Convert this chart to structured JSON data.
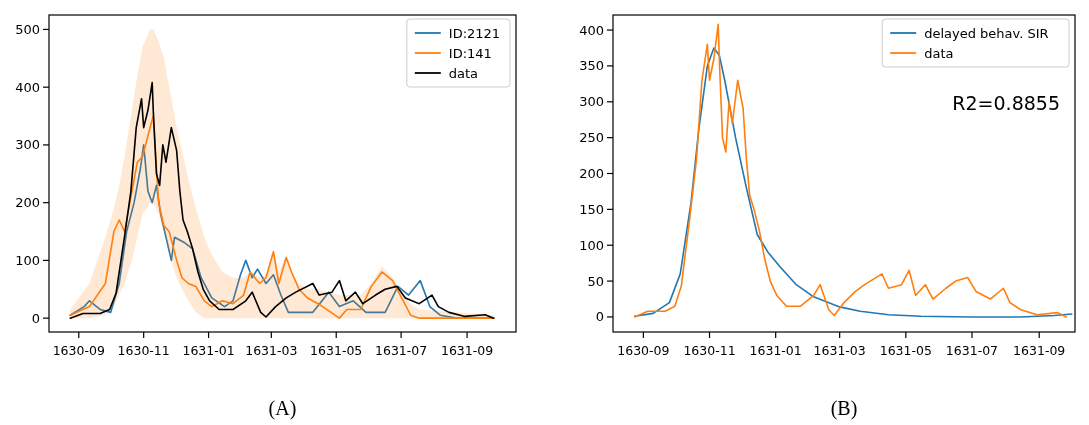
{
  "chart_data": [
    {
      "type": "line",
      "xlabel": "(A)",
      "legend": "top right",
      "xlim": [
        "1630-08-04",
        "1631-10-17"
      ],
      "ylim": [
        -24,
        525
      ],
      "xticks": [
        "1630-09",
        "1630-11",
        "1631-01",
        "1631-03",
        "1631-05",
        "1631-07",
        "1631-09"
      ],
      "yticks": [
        0,
        100,
        200,
        300,
        400,
        500
      ],
      "series": [
        {
          "name": "ID:2121",
          "color": "#1f77b4",
          "x": [
            "1630-08-24",
            "1630-09-06",
            "1630-09-11",
            "1630-09-21",
            "1630-10-01",
            "1630-10-09",
            "1630-10-16",
            "1630-10-23",
            "1630-10-29",
            "1630-11-01",
            "1630-11-05",
            "1630-11-09",
            "1630-11-13",
            "1630-11-17",
            "1630-11-22",
            "1630-11-27",
            "1630-11-30",
            "1630-12-10",
            "1630-12-17",
            "1630-12-25",
            "1631-01-04",
            "1631-01-16",
            "1631-01-24",
            "1631-01-31",
            "1631-02-05",
            "1631-02-11",
            "1631-02-16",
            "1631-02-24",
            "1631-03-03",
            "1631-03-10",
            "1631-03-17",
            "1631-04-09",
            "1631-04-24",
            "1631-05-04",
            "1631-05-17",
            "1631-05-29",
            "1631-06-16",
            "1631-06-28",
            "1631-07-08",
            "1631-07-19",
            "1631-07-28",
            "1631-08-07",
            "1631-08-22",
            "1631-09-26"
          ],
          "values": [
            5,
            20,
            30,
            15,
            10,
            60,
            150,
            200,
            260,
            300,
            220,
            200,
            230,
            180,
            140,
            100,
            140,
            130,
            120,
            70,
            35,
            20,
            30,
            75,
            100,
            70,
            85,
            60,
            75,
            40,
            10,
            10,
            45,
            20,
            30,
            10,
            10,
            55,
            40,
            65,
            20,
            5,
            0,
            0
          ]
        },
        {
          "name": "ID:141",
          "color": "#ff7f0e",
          "x": [
            "1630-08-24",
            "1630-09-11",
            "1630-09-26",
            "1630-10-04",
            "1630-10-09",
            "1630-10-14",
            "1630-10-21",
            "1630-10-26",
            "1630-10-31",
            "1630-11-07",
            "1630-11-10",
            "1630-11-15",
            "1630-11-20",
            "1630-11-25",
            "1630-12-02",
            "1630-12-07",
            "1630-12-13",
            "1630-12-20",
            "1630-12-28",
            "1631-01-04",
            "1631-01-14",
            "1631-01-24",
            "1631-02-03",
            "1631-02-09",
            "1631-02-18",
            "1631-02-24",
            "1631-03-03",
            "1631-03-08",
            "1631-03-15",
            "1631-03-20",
            "1631-03-27",
            "1631-04-04",
            "1631-04-14",
            "1631-05-04",
            "1631-05-11",
            "1631-05-24",
            "1631-06-03",
            "1631-06-13",
            "1631-06-23",
            "1631-07-03",
            "1631-07-10",
            "1631-07-18",
            "1631-09-26"
          ],
          "values": [
            5,
            20,
            60,
            150,
            170,
            150,
            220,
            270,
            280,
            330,
            350,
            200,
            160,
            150,
            100,
            70,
            60,
            55,
            30,
            20,
            30,
            25,
            40,
            80,
            60,
            70,
            115,
            60,
            105,
            80,
            50,
            35,
            25,
            0,
            15,
            15,
            55,
            80,
            65,
            30,
            5,
            0,
            0
          ],
          "upper": [
            15,
            60,
            140,
            190,
            230,
            280,
            360,
            420,
            470,
            500,
            500,
            480,
            450,
            400,
            330,
            290,
            240,
            190,
            140,
            110,
            80,
            70,
            70,
            80,
            70,
            75,
            120,
            80,
            110,
            80,
            60,
            50,
            50,
            40,
            40,
            40,
            60,
            90,
            70,
            40,
            25,
            15,
            5
          ],
          "lower": [
            0,
            0,
            5,
            20,
            40,
            60,
            100,
            140,
            180,
            200,
            200,
            180,
            150,
            110,
            70,
            50,
            30,
            10,
            0,
            0,
            0,
            0,
            0,
            0,
            0,
            0,
            0,
            0,
            0,
            0,
            0,
            0,
            0,
            0,
            0,
            0,
            0,
            0,
            0,
            0,
            0,
            0,
            0
          ]
        },
        {
          "name": "data",
          "color": "#000000",
          "x": [
            "1630-08-24",
            "1630-09-05",
            "1630-09-21",
            "1630-09-30",
            "1630-10-06",
            "1630-10-14",
            "1630-10-20",
            "1630-10-25",
            "1630-10-30",
            "1630-11-01",
            "1630-11-05",
            "1630-11-09",
            "1630-11-10",
            "1630-11-13",
            "1630-11-16",
            "1630-11-19",
            "1630-11-22",
            "1630-11-27",
            "1630-12-02",
            "1630-12-05",
            "1630-12-08",
            "1630-12-12",
            "1630-12-17",
            "1630-12-22",
            "1630-12-27",
            "1631-01-02",
            "1631-01-11",
            "1631-01-24",
            "1631-02-05",
            "1631-02-11",
            "1631-02-19",
            "1631-02-24",
            "1631-03-05",
            "1631-03-15",
            "1631-03-24",
            "1631-04-09",
            "1631-04-15",
            "1631-04-27",
            "1631-05-04",
            "1631-05-10",
            "1631-05-19",
            "1631-05-26",
            "1631-06-07",
            "1631-06-16",
            "1631-06-27",
            "1631-07-05",
            "1631-07-18",
            "1631-07-30",
            "1631-08-05",
            "1631-08-15",
            "1631-08-30",
            "1631-09-18",
            "1631-09-26"
          ],
          "values": [
            0,
            8,
            8,
            15,
            43,
            141,
            220,
            330,
            380,
            330,
            360,
            408,
            360,
            250,
            230,
            300,
            270,
            330,
            290,
            220,
            170,
            150,
            120,
            80,
            50,
            30,
            15,
            15,
            30,
            45,
            10,
            2,
            20,
            35,
            45,
            60,
            40,
            45,
            65,
            30,
            45,
            25,
            40,
            50,
            55,
            35,
            25,
            40,
            20,
            10,
            3,
            6,
            0
          ]
        }
      ]
    },
    {
      "type": "line",
      "xlabel": "(B)",
      "legend": "top right",
      "annotations": [
        "R2=0.8855"
      ],
      "xlim": [
        "1630-08-04",
        "1631-10-04"
      ],
      "ylim": [
        -21,
        421
      ],
      "xticks": [
        "1630-09",
        "1630-11",
        "1631-01",
        "1631-03",
        "1631-05",
        "1631-07",
        "1631-09"
      ],
      "yticks": [
        0,
        50,
        100,
        150,
        200,
        250,
        300,
        350,
        400
      ],
      "series": [
        {
          "name": "delayed behav. SIR",
          "color": "#1f77b4",
          "x": [
            "1630-08-24",
            "1630-09-10",
            "1630-09-25",
            "1630-10-05",
            "1630-10-15",
            "1630-10-22",
            "1630-10-30",
            "1630-11-05",
            "1630-11-10",
            "1630-11-15",
            "1630-11-25",
            "1630-12-05",
            "1630-12-15",
            "1630-12-25",
            "1631-01-05",
            "1631-01-20",
            "1631-02-05",
            "1631-03-01",
            "1631-03-20",
            "1631-04-15",
            "1631-05-15",
            "1631-07-01",
            "1631-08-15",
            "1631-09-15",
            "1631-10-01"
          ],
          "values": [
            1,
            5,
            20,
            60,
            160,
            260,
            350,
            375,
            365,
            330,
            250,
            180,
            115,
            90,
            70,
            45,
            28,
            14,
            8,
            3,
            1,
            0,
            0,
            2,
            4
          ]
        },
        {
          "name": "data",
          "color": "#ff7f0e",
          "x": [
            "1630-08-24",
            "1630-09-05",
            "1630-09-21",
            "1630-09-30",
            "1630-10-06",
            "1630-10-14",
            "1630-10-20",
            "1630-10-25",
            "1630-10-30",
            "1630-11-01",
            "1630-11-05",
            "1630-11-09",
            "1630-11-10",
            "1630-11-13",
            "1630-11-16",
            "1630-11-19",
            "1630-11-22",
            "1630-11-27",
            "1630-12-02",
            "1630-12-05",
            "1630-12-08",
            "1630-12-12",
            "1630-12-17",
            "1630-12-22",
            "1630-12-27",
            "1631-01-02",
            "1631-01-11",
            "1631-01-24",
            "1631-02-05",
            "1631-02-11",
            "1631-02-19",
            "1631-02-24",
            "1631-03-05",
            "1631-03-15",
            "1631-03-24",
            "1631-04-09",
            "1631-04-15",
            "1631-04-27",
            "1631-05-04",
            "1631-05-10",
            "1631-05-19",
            "1631-05-26",
            "1631-06-07",
            "1631-06-16",
            "1631-06-27",
            "1631-07-05",
            "1631-07-18",
            "1631-07-30",
            "1631-08-05",
            "1631-08-15",
            "1631-08-30",
            "1631-09-18",
            "1631-09-26"
          ],
          "values": [
            0,
            8,
            8,
            15,
            43,
            141,
            220,
            330,
            380,
            330,
            360,
            408,
            360,
            250,
            230,
            300,
            270,
            330,
            290,
            220,
            170,
            150,
            120,
            80,
            50,
            30,
            15,
            15,
            30,
            45,
            10,
            2,
            20,
            35,
            45,
            60,
            40,
            45,
            65,
            30,
            45,
            25,
            40,
            50,
            55,
            35,
            25,
            40,
            20,
            10,
            3,
            6,
            0
          ]
        }
      ]
    }
  ]
}
